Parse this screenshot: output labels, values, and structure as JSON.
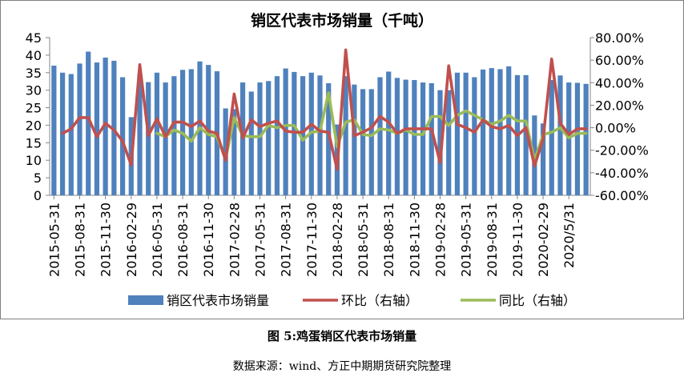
{
  "figure": {
    "caption": "图 5:鸡蛋销区代表市场销量",
    "source": "数据来源：wind、方正中期期货研究院整理"
  },
  "colors": {
    "bar": "#4f81bd",
    "mom": "#c0504d",
    "yoy": "#9bbb59",
    "axis": "#868686",
    "frame": "#7f7f7f"
  },
  "chart_data": {
    "type": "bar",
    "title": "销区代表市场销量（千吨）",
    "x": [
      "2015-05-31",
      "2015-06-30",
      "2015-07-31",
      "2015-08-31",
      "2015-09-30",
      "2015-10-31",
      "2015-11-30",
      "2015-12-31",
      "2016-01-31",
      "2016-02-29",
      "2016-03-31",
      "2016-04-30",
      "2016-05-31",
      "2016-06-30",
      "2016-07-31",
      "2016-08-31",
      "2016-09-30",
      "2016-10-31",
      "2016-11-30",
      "2016-12-31",
      "2017-01-31",
      "2017-02-28",
      "2017-03-31",
      "2017-04-30",
      "2017-05-31",
      "2017-06-30",
      "2017-07-31",
      "2017-08-31",
      "2017-09-30",
      "2017-10-31",
      "2017-11-30",
      "2017-12-31",
      "2018-01-31",
      "2018-02-28",
      "2018-03-31",
      "2018-04-30",
      "2018-05-31",
      "2018-06-30",
      "2018-07-31",
      "2018-08-31",
      "2018-09-30",
      "2018-10-31",
      "2018-11-30",
      "2018-12-31",
      "2019-01-31",
      "2019-02-28",
      "2019-03-31",
      "2019-04-30",
      "2019-05-31",
      "2019-06-30",
      "2019-07-31",
      "2019-08-31",
      "2019-09-30",
      "2019-10-31",
      "2019-11-30",
      "2019-12-31",
      "2020-01-31",
      "2020-02-29",
      "2020-03-31",
      "2020-04-30",
      "2020/5/31",
      "2020-06-30",
      "2020-07-31"
    ],
    "x_tick_labels": [
      "2015-05-31",
      "2015-08-31",
      "2015-11-30",
      "2016-02-29",
      "2016-05-31",
      "2016-08-31",
      "2016-11-30",
      "2017-02-28",
      "2017-05-31",
      "2017-08-31",
      "2017-11-30",
      "2018-02-28",
      "2018-05-31",
      "2018-08-31",
      "2018-11-30",
      "2019-02-28",
      "2019-05-31",
      "2019-08-31",
      "2019-11-30",
      "2020-02-29",
      "2020/5/31"
    ],
    "y_left": {
      "min": 0,
      "max": 45,
      "step": 5,
      "ticks": [
        "0",
        "5",
        "10",
        "15",
        "20",
        "25",
        "30",
        "35",
        "40",
        "45"
      ]
    },
    "y_right": {
      "min": -0.6,
      "max": 0.8,
      "step": 0.2,
      "ticks": [
        "-60.00%",
        "-40.00%",
        "-20.00%",
        "0.00%",
        "20.00%",
        "40.00%",
        "60.00%",
        "80.00%"
      ]
    },
    "legend_position": "bottom",
    "series": [
      {
        "name": "销区代表市场销量",
        "type": "bar",
        "axis": "left",
        "values": [
          37.0,
          35.0,
          34.6,
          37.6,
          41.0,
          37.9,
          39.3,
          38.4,
          33.7,
          22.3,
          34.6,
          32.3,
          35.0,
          32.2,
          34.0,
          35.8,
          36.0,
          38.2,
          37.2,
          35.4,
          24.8,
          24.6,
          32.2,
          29.6,
          32.2,
          32.6,
          34.0,
          36.2,
          35.2,
          34.0,
          35.0,
          34.2,
          32.0,
          20.2,
          34.0,
          31.6,
          30.3,
          30.3,
          33.7,
          35.3,
          33.5,
          33.0,
          32.9,
          32.2,
          32.0,
          30.0,
          30.0,
          35.0,
          35.0,
          33.7,
          35.9,
          36.3,
          36.0,
          36.8,
          34.3,
          34.3,
          22.8,
          20.5,
          32.9,
          34.2,
          32.2,
          32.1,
          31.8
        ]
      },
      {
        "name": "环比（右轴）",
        "type": "line",
        "axis": "right",
        "values": [
          null,
          -0.05,
          -0.01,
          0.09,
          0.09,
          -0.08,
          0.04,
          -0.02,
          -0.12,
          -0.33,
          0.56,
          -0.07,
          0.08,
          -0.08,
          0.05,
          0.05,
          0.01,
          0.06,
          -0.03,
          -0.05,
          -0.29,
          0.3,
          -0.09,
          0.07,
          0.01,
          0.04,
          0.06,
          -0.03,
          -0.04,
          -0.04,
          0.03,
          -0.03,
          -0.04,
          -0.37,
          0.69,
          -0.07,
          -0.04,
          0.0,
          0.1,
          0.05,
          -0.05,
          -0.01,
          -0.01,
          -0.01,
          -0.01,
          -0.31,
          0.55,
          0.03,
          0.0,
          -0.04,
          0.07,
          0.01,
          -0.01,
          0.02,
          -0.07,
          0.0,
          -0.34,
          -0.1,
          0.61,
          0.04,
          -0.06,
          -0.01,
          -0.01
        ]
      },
      {
        "name": "同比（右轴）",
        "type": "line",
        "axis": "right",
        "values": [
          null,
          null,
          null,
          null,
          null,
          null,
          null,
          null,
          null,
          null,
          null,
          null,
          -0.05,
          -0.08,
          -0.02,
          -0.05,
          -0.12,
          0.0,
          -0.06,
          -0.08,
          -0.28,
          0.09,
          -0.07,
          -0.08,
          -0.08,
          0.02,
          0.0,
          0.02,
          0.02,
          -0.11,
          -0.04,
          -0.03,
          0.31,
          -0.17,
          0.05,
          0.07,
          -0.06,
          -0.07,
          -0.01,
          -0.02,
          -0.05,
          -0.02,
          -0.06,
          -0.06,
          0.1,
          0.1,
          0.02,
          0.11,
          0.15,
          0.11,
          0.07,
          0.03,
          0.06,
          0.11,
          0.06,
          0.06,
          -0.29,
          -0.06,
          -0.04,
          0.0,
          -0.09,
          -0.05,
          -0.05
        ]
      }
    ]
  }
}
